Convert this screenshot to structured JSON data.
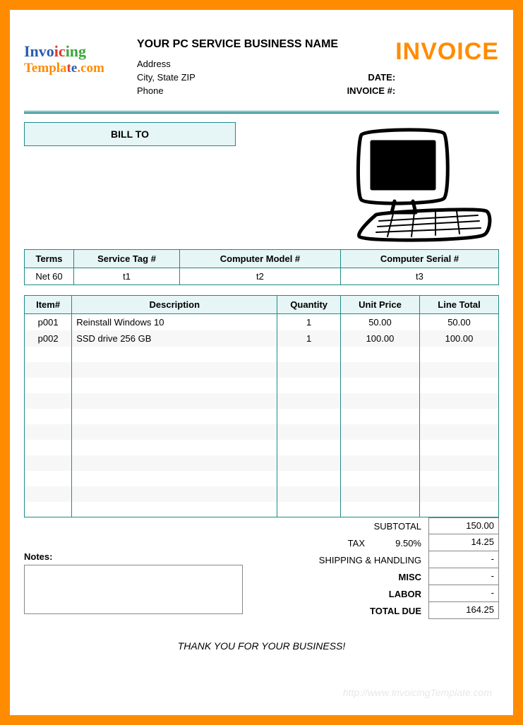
{
  "colors": {
    "border": "#ff8c00",
    "teal": "#1e8a8a",
    "header_bg": "#e6f5f5",
    "stripe": "#f7f7f7",
    "logo_blue": "#2a5db0",
    "logo_red": "#d93a2b",
    "logo_green": "#3aa63a",
    "logo_orange": "#ff8c00"
  },
  "logo": {
    "line1a": "Invo",
    "line1b": "ic",
    "line1c": "ing",
    "line2a": "Templa",
    "line2b": "t",
    "line2c": "e",
    "line2d": ".com"
  },
  "header": {
    "business_name": "YOUR PC SERVICE BUSINESS NAME",
    "address": "Address",
    "city_state_zip": "City, State ZIP",
    "phone": "Phone",
    "date_label": "DATE:",
    "invoice_num_label": "INVOICE #:",
    "title": "INVOICE"
  },
  "billto": {
    "label": "BILL TO"
  },
  "meta": {
    "headers": [
      "Terms",
      "Service Tag #",
      "Computer Model #",
      "Computer Serial #"
    ],
    "values": [
      "Net 60",
      "t1",
      "t2",
      "t3"
    ]
  },
  "items": {
    "headers": [
      "Item#",
      "Description",
      "Quantity",
      "Unit Price",
      "Line Total"
    ],
    "rows": [
      {
        "item": "p001",
        "desc": "Reinstall Windows 10",
        "qty": "1",
        "price": "50.00",
        "total": "50.00"
      },
      {
        "item": "p002",
        "desc": "SSD drive 256 GB",
        "qty": "1",
        "price": "100.00",
        "total": "100.00"
      }
    ],
    "blank_rows": 11
  },
  "totals": {
    "notes_label": "Notes:",
    "rows": [
      {
        "label": "SUBTOTAL",
        "value": "150.00",
        "bold": false
      },
      {
        "label": "TAX",
        "value": "14.25",
        "pct": "9.50%",
        "bold": false
      },
      {
        "label": "SHIPPING & HANDLING",
        "value": "-",
        "bold": false
      },
      {
        "label": "MISC",
        "value": "-",
        "bold": true
      },
      {
        "label": "LABOR",
        "value": "-",
        "bold": true
      },
      {
        "label": "TOTAL DUE",
        "value": "164.25",
        "bold": true
      }
    ]
  },
  "thanks": "THANK YOU FOR YOUR BUSINESS!",
  "watermark": "http://www.InvoicingTemplate.com"
}
